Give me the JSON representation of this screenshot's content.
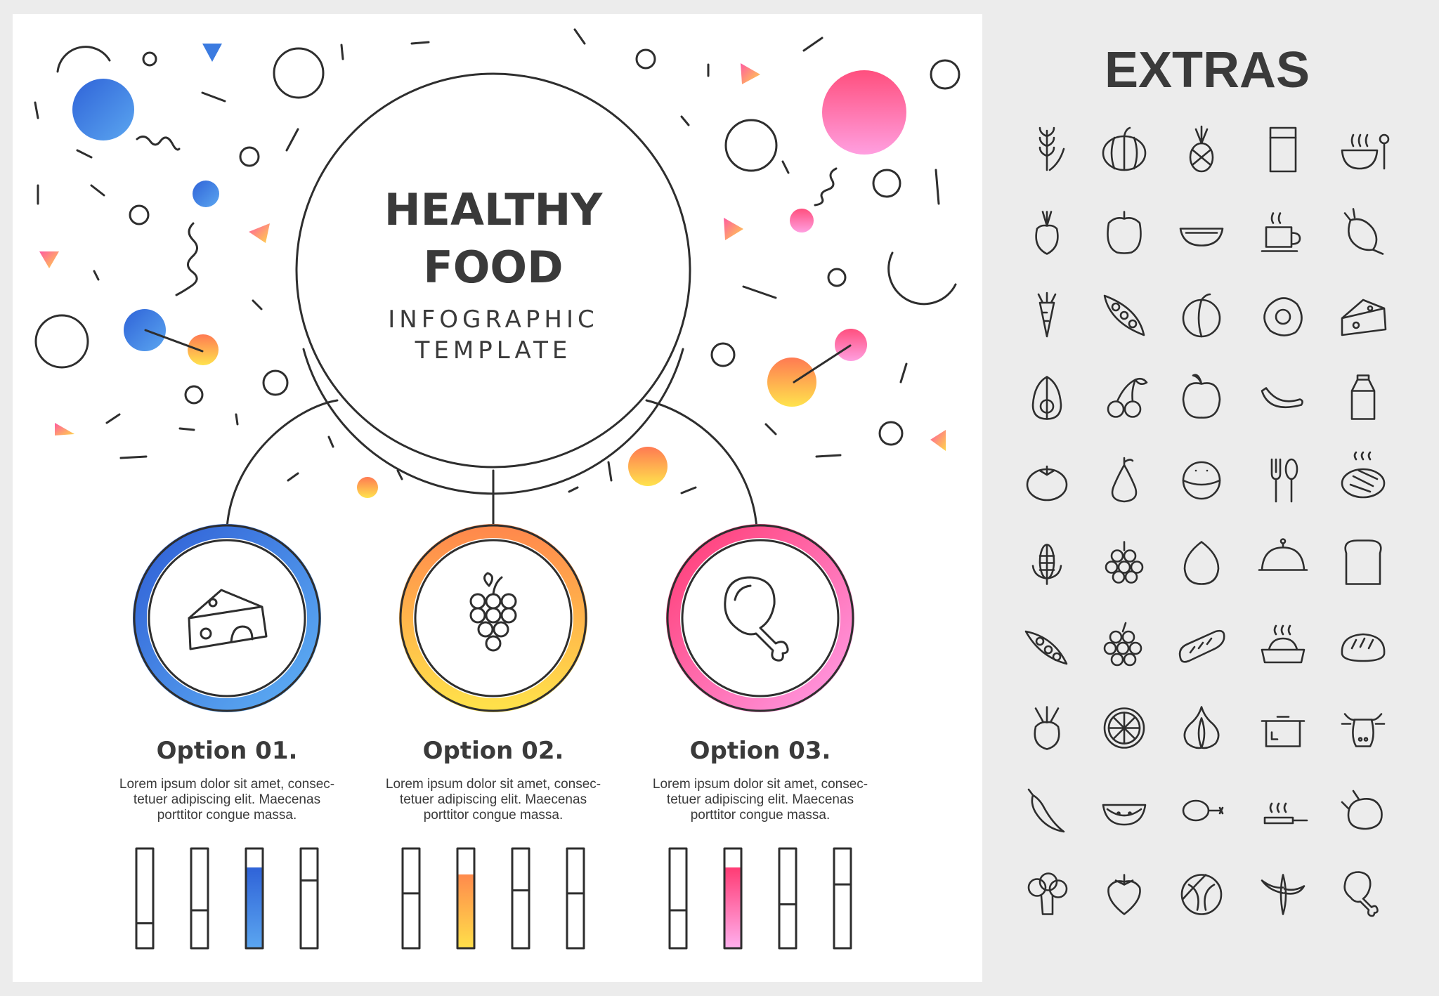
{
  "header": {
    "title_line1": "HEALTHY",
    "title_line2": "FOOD",
    "subtitle_line1": "INFOGRAPHIC",
    "subtitle_line2": "TEMPLATE"
  },
  "options": [
    {
      "title": "Option 01.",
      "desc_lines": [
        "Lorem ipsum dolor sit amet, consec-",
        "tetuer adipiscing elit. Maecenas",
        "porttitor congue massa."
      ],
      "icon": "cheese-icon",
      "color": "#3b7be0",
      "bars": [
        0.25,
        0.38,
        0.81,
        0.68
      ],
      "highlight_bar": 2
    },
    {
      "title": "Option 02.",
      "desc_lines": [
        "Lorem ipsum dolor sit amet, consec-",
        "tetuer adipiscing elit. Maecenas",
        "porttitor congue massa."
      ],
      "icon": "grapes-icon",
      "color": "#f6a53a",
      "bars": [
        0.55,
        0.74,
        0.58,
        0.55
      ],
      "highlight_bar": 1
    },
    {
      "title": "Option 03.",
      "desc_lines": [
        "Lorem ipsum dolor sit amet, consec-",
        "tetuer adipiscing elit. Maecenas",
        "porttitor congue massa."
      ],
      "icon": "chicken-leg-icon",
      "color": "#f04d8c",
      "bars": [
        0.38,
        0.81,
        0.44,
        0.64
      ],
      "highlight_bar": 1
    }
  ],
  "extras": {
    "title": "EXTRAS",
    "icons": [
      "wheat-icon",
      "pumpkin-icon",
      "pineapple-icon",
      "juice-glass-icon",
      "soup-bowl-icon",
      "onion-icon",
      "bell-pepper-icon",
      "melon-slice-icon",
      "coffee-cup-icon",
      "radish-icon",
      "carrot-icon",
      "pea-pod-icon",
      "plum-icon",
      "fried-egg-icon",
      "cheese-icon",
      "avocado-icon",
      "cherries-icon",
      "peach-icon",
      "banana-icon",
      "milk-carton-icon",
      "tomato-icon",
      "pear-icon",
      "coconut-icon",
      "cutlery-icon",
      "steak-icon",
      "corn-icon",
      "grapes-icon",
      "egg-icon",
      "cloche-icon",
      "bread-slice-icon",
      "peas-icon",
      "grape-bunch-icon",
      "baguette-icon",
      "pasta-bowl-icon",
      "bread-loaf-icon",
      "beet-icon",
      "orange-slice-icon",
      "garlic-icon",
      "cooking-pot-icon",
      "cow-icon",
      "chili-pepper-icon",
      "watermelon-icon",
      "drumstick-icon",
      "frying-pan-icon",
      "roast-chicken-icon",
      "broccoli-icon",
      "strawberry-icon",
      "cabbage-icon",
      "peeled-banana-icon",
      "chicken-leg-icon"
    ]
  },
  "colors": {
    "blue": "#3b7be0",
    "orange": "#f6a53a",
    "pink": "#f04d8c",
    "yellow": "#ffd54a",
    "ink": "#2e2e2e"
  }
}
